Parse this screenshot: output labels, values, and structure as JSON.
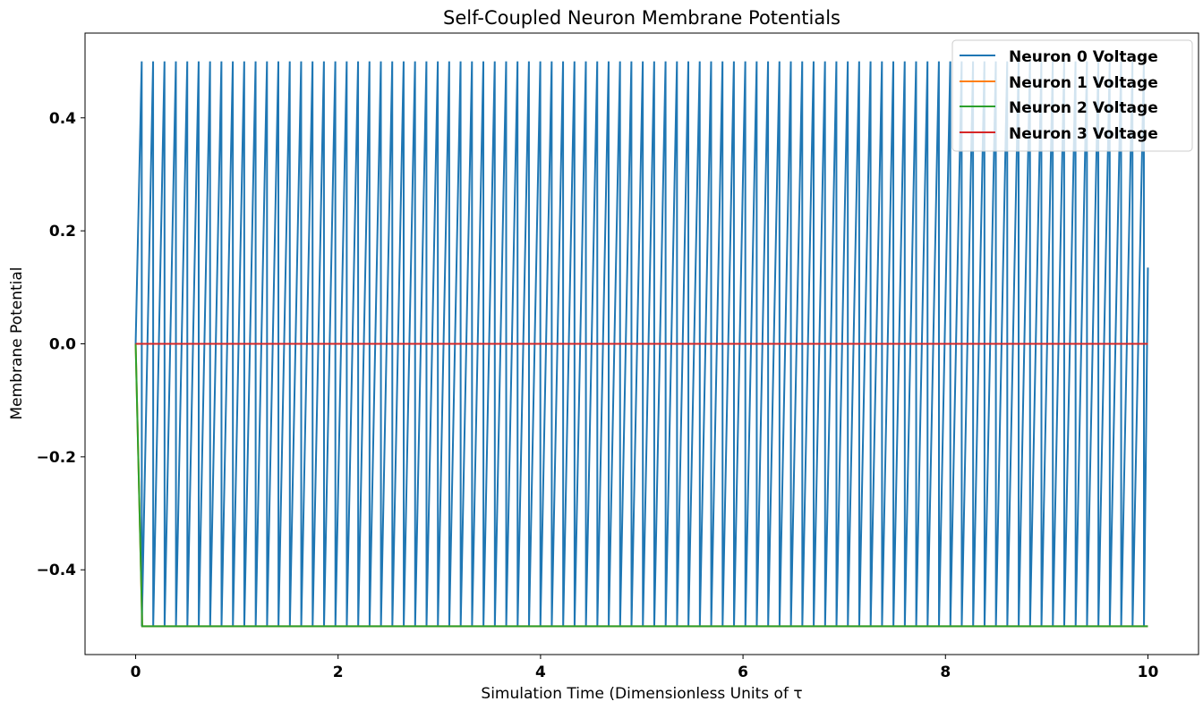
{
  "chart_data": {
    "type": "line",
    "title": "Self-Coupled Neuron Membrane Potentials",
    "xlabel": "Simulation Time (Dimensionless Units of τ",
    "ylabel": "Membrane Potential",
    "xlim": [
      -0.5,
      10.5
    ],
    "ylim": [
      -0.55,
      0.55
    ],
    "xticks": [
      0,
      2,
      4,
      6,
      8,
      10
    ],
    "xtick_labels": [
      "0",
      "2",
      "4",
      "6",
      "8",
      "10"
    ],
    "yticks": [
      -0.4,
      -0.2,
      0.0,
      0.2,
      0.4
    ],
    "ytick_labels": [
      "−0.4",
      "−0.2",
      "0.0",
      "0.2",
      "0.4"
    ],
    "grid": false,
    "legend_position": "top-right",
    "series": [
      {
        "name": "Neuron 0 Voltage",
        "color": "#1f77b4",
        "pattern": "sawtooth",
        "spike_period": 0.1125,
        "spike_count": 89,
        "v_min": -0.5,
        "v_max": 0.5,
        "end_value": 0.135
      },
      {
        "name": "Neuron 1 Voltage",
        "color": "#ff7f0e",
        "x": [
          0,
          0.065,
          10
        ],
        "y": [
          0,
          -0.5,
          -0.5
        ]
      },
      {
        "name": "Neuron 2 Voltage",
        "color": "#2ca02c",
        "x": [
          0,
          0.065,
          10
        ],
        "y": [
          0,
          -0.5,
          -0.5
        ]
      },
      {
        "name": "Neuron 3 Voltage",
        "color": "#d62728",
        "x": [
          0,
          10
        ],
        "y": [
          0,
          0
        ]
      }
    ]
  }
}
